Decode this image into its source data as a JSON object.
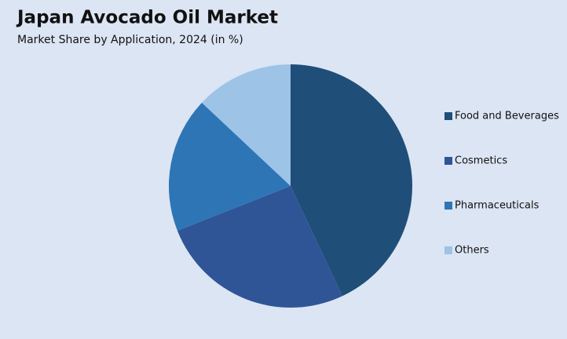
{
  "chart_data": {
    "type": "pie",
    "title": "Japan Avocado Oil Market",
    "subtitle": "Market Share by Application, 2024 (in %)",
    "categories": [
      "Food and Beverages",
      "Cosmetics",
      "Pharmaceuticals",
      "Others"
    ],
    "values": [
      43,
      26,
      18,
      13
    ],
    "colors": [
      "#1f4e79",
      "#2f5597",
      "#2e75b6",
      "#9dc3e6"
    ],
    "legend": "right"
  }
}
